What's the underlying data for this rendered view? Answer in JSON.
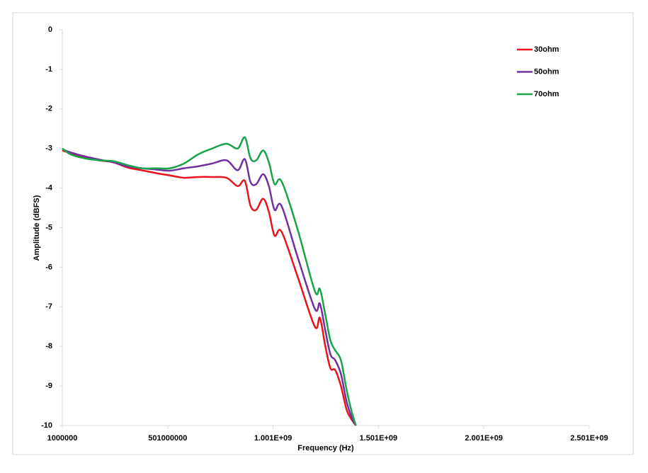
{
  "chart_data": {
    "type": "line",
    "x_label": "Frequency (Hz)",
    "y_label": "Amplitude (dBFS)",
    "x": [
      1000000,
      41000000,
      108000000,
      176000000,
      243000000,
      310000000,
      377000000,
      444000000,
      511000000,
      578000000,
      645000000,
      712000000,
      780000000,
      833000000,
      867000000,
      894000000,
      921000000,
      954000000,
      981000000,
      1008000000,
      1041000000,
      1115000000,
      1199000000,
      1223000000,
      1249000000,
      1273000000,
      1296000000,
      1323000000,
      1350000000,
      1374000000,
      1394000000
    ],
    "series": [
      {
        "name": "30ohm",
        "color": "#e8141b",
        "values": [
          -3.05,
          -3.12,
          -3.22,
          -3.3,
          -3.35,
          -3.48,
          -3.55,
          -3.62,
          -3.68,
          -3.74,
          -3.72,
          -3.72,
          -3.74,
          -3.95,
          -3.82,
          -4.45,
          -4.55,
          -4.27,
          -4.6,
          -5.2,
          -5.1,
          -6.2,
          -7.5,
          -7.28,
          -8.0,
          -8.55,
          -8.6,
          -9.0,
          -9.6,
          -9.85,
          -10
        ]
      },
      {
        "name": "50ohm",
        "color": "#7030a0",
        "values": [
          -3.02,
          -3.1,
          -3.2,
          -3.28,
          -3.35,
          -3.45,
          -3.5,
          -3.53,
          -3.56,
          -3.5,
          -3.45,
          -3.38,
          -3.3,
          -3.55,
          -3.27,
          -3.85,
          -3.9,
          -3.65,
          -3.95,
          -4.55,
          -4.45,
          -5.7,
          -7.05,
          -6.92,
          -7.6,
          -8.2,
          -8.35,
          -8.7,
          -9.4,
          -9.8,
          -10
        ]
      },
      {
        "name": "70ohm",
        "color": "#1aa34a",
        "values": [
          -3.0,
          -3.15,
          -3.25,
          -3.3,
          -3.32,
          -3.42,
          -3.5,
          -3.5,
          -3.5,
          -3.38,
          -3.15,
          -3.0,
          -2.88,
          -3.0,
          -2.72,
          -3.25,
          -3.3,
          -3.05,
          -3.35,
          -3.9,
          -3.83,
          -5.0,
          -6.6,
          -6.55,
          -7.2,
          -7.85,
          -8.1,
          -8.35,
          -9.1,
          -9.65,
          -10
        ]
      }
    ],
    "xlim": [
      1000000,
      2501000000
    ],
    "xticks": [
      1000000,
      501000000,
      {
        "value": 1001000000,
        "label": "1.001E+09"
      },
      {
        "value": 1501000000,
        "label": "1.501E+09"
      },
      {
        "value": 2001000000,
        "label": "2.001E+09"
      },
      {
        "value": 2501000000,
        "label": "2.501E+09"
      }
    ],
    "ylim": [
      -10,
      0
    ],
    "yticks": [
      0,
      -1,
      -2,
      -3,
      -4,
      -5,
      -6,
      -7,
      -8,
      -9,
      -10
    ],
    "grid": false,
    "legend_position": "top-right"
  }
}
